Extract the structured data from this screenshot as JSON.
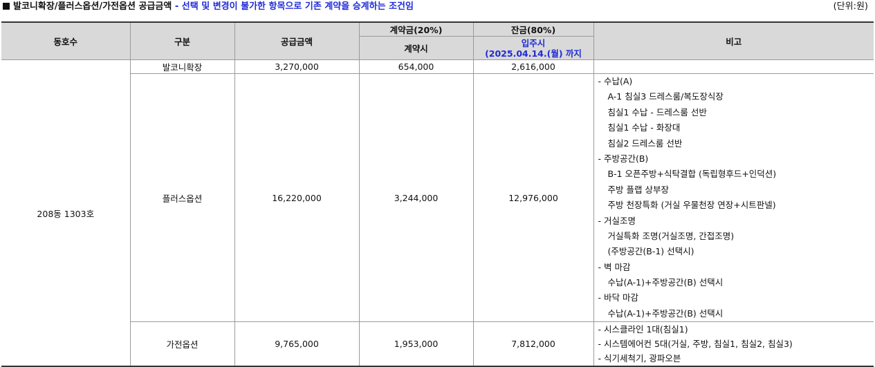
{
  "title": {
    "main": "발코니확장/플러스옵션/가전옵션 공급금액",
    "sep": " - ",
    "note": "선택 및 변경이 불가한 항목으로 기존 계약을 승계하는 조건임",
    "unit": "(단위:원)"
  },
  "headers": {
    "unit_no": "동호수",
    "category": "구분",
    "supply": "공급금액",
    "deposit": "계약금(20%)",
    "deposit_sub": "계약시",
    "balance": "잔금(80%)",
    "balance_sub1": "입주시",
    "balance_sub2": "(2025.04.14.(월) 까지",
    "remarks": "비고"
  },
  "unit_no": "208동 1303호",
  "rows": [
    {
      "category": "발코니확장",
      "supply": "3,270,000",
      "deposit": "654,000",
      "balance": "2,616,000"
    },
    {
      "category": "플러스옵션",
      "supply": "16,220,000",
      "deposit": "3,244,000",
      "balance": "12,976,000"
    },
    {
      "category": "가전옵션",
      "supply": "9,765,000",
      "deposit": "1,953,000",
      "balance": "7,812,000"
    }
  ],
  "plus_remarks": [
    {
      "text": "- 수납(A)",
      "indent": false
    },
    {
      "text": "A-1 침실3 드레스룸/복도장식장",
      "indent": true
    },
    {
      "text": "침실1 수납 - 드레스룸 선반",
      "indent": true
    },
    {
      "text": "침실1 수납 - 화장대",
      "indent": true
    },
    {
      "text": "침실2 드레스룸 선반",
      "indent": true
    },
    {
      "text": "- 주방공간(B)",
      "indent": false
    },
    {
      "text": "B-1 오픈주방+식탁결합 (독립형후드+인덕션)",
      "indent": true
    },
    {
      "text": "주방 플랩 상부장",
      "indent": true
    },
    {
      "text": "주방 천장특화 (거실 우물천장 연장+시트판넬)",
      "indent": true
    },
    {
      "text": "- 거실조명",
      "indent": false
    },
    {
      "text": "거실특화 조명(거실조명, 간접조명)",
      "indent": true
    },
    {
      "text": "(주방공간(B-1) 선택시)",
      "indent": true
    },
    {
      "text": "- 벽 마감",
      "indent": false
    },
    {
      "text": "수납(A-1)+주방공간(B) 선택시",
      "indent": true
    },
    {
      "text": "- 바닥 마감",
      "indent": false
    },
    {
      "text": "수납(A-1)+주방공간(B) 선택시",
      "indent": true
    }
  ],
  "appliance_remarks": [
    "- 시스클라인 1대(침실1)",
    "- 시스템에어컨 5대(거실, 주방, 침실1, 침실2, 침실3)",
    "- 식기세척기, 광파오븐"
  ]
}
